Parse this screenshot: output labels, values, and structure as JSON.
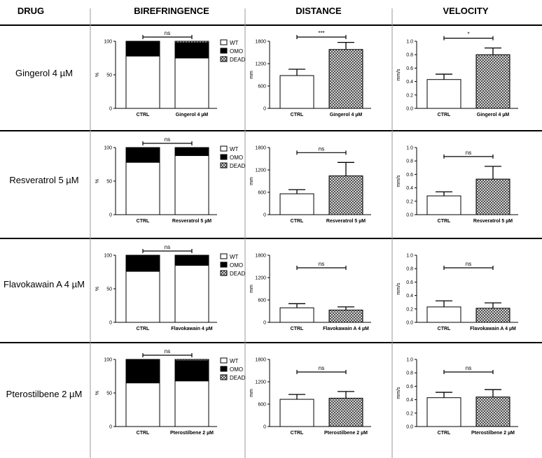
{
  "headers": {
    "drug": "DRUG",
    "birefringence": "BIREFRINGENCE",
    "distance": "DISTANCE",
    "velocity": "VELOCITY"
  },
  "legend": [
    "WT",
    "OMO",
    "DEAD"
  ],
  "rows": [
    {
      "drug": "Gingerol 4 µM",
      "bire": {
        "type": "bar",
        "stacked": true,
        "categories": [
          "CTRL",
          "Gingerol 4 µM"
        ],
        "ylabel": "%",
        "ylim": [
          0,
          100
        ],
        "ticks": [
          "0",
          "50",
          "100"
        ],
        "series": [
          {
            "name": "WT",
            "values": [
              78,
              75
            ]
          },
          {
            "name": "OMO",
            "values": [
              22,
              23
            ]
          },
          {
            "name": "DEAD",
            "values": [
              0,
              2
            ]
          }
        ],
        "sig": "ns"
      },
      "dist": {
        "type": "bar",
        "categories": [
          "CTRL",
          "Gingerol 4 µM"
        ],
        "ylabel": "mm",
        "ylim": [
          0,
          1800
        ],
        "ticks": [
          "0",
          "600",
          "1200",
          "1800"
        ],
        "values": [
          880,
          1580
        ],
        "errors": [
          170,
          190
        ],
        "sig": "***"
      },
      "vel": {
        "type": "bar",
        "categories": [
          "CTRL",
          "Gingerol 4 µM"
        ],
        "ylabel": "mm/s",
        "ylim": [
          0,
          1.0
        ],
        "ticks": [
          "0.0",
          "0.2",
          "0.4",
          "0.6",
          "0.8",
          "1.0"
        ],
        "values": [
          0.43,
          0.8
        ],
        "errors": [
          0.08,
          0.1
        ],
        "sig": "*"
      }
    },
    {
      "drug": "Resveratrol 5 µM",
      "bire": {
        "type": "bar",
        "stacked": true,
        "categories": [
          "CTRL",
          "Resveratrol 5 µM"
        ],
        "ylabel": "%",
        "ylim": [
          0,
          100
        ],
        "ticks": [
          "0",
          "50",
          "100"
        ],
        "series": [
          {
            "name": "WT",
            "values": [
              78,
              88
            ]
          },
          {
            "name": "OMO",
            "values": [
              22,
              12
            ]
          },
          {
            "name": "DEAD",
            "values": [
              0,
              0
            ]
          }
        ],
        "sig": "ns"
      },
      "dist": {
        "type": "bar",
        "categories": [
          "CTRL",
          "Resveratrol 5 µM"
        ],
        "ylabel": "mm",
        "ylim": [
          0,
          1800
        ],
        "ticks": [
          "0",
          "600",
          "1200",
          "1800"
        ],
        "values": [
          560,
          1040
        ],
        "errors": [
          110,
          360
        ],
        "sig": "ns"
      },
      "vel": {
        "type": "bar",
        "categories": [
          "CTRL",
          "Resveratrol 5 µM"
        ],
        "ylabel": "mm/s",
        "ylim": [
          0,
          1.0
        ],
        "ticks": [
          "0.0",
          "0.2",
          "0.4",
          "0.6",
          "0.8",
          "1.0"
        ],
        "values": [
          0.28,
          0.53
        ],
        "errors": [
          0.06,
          0.19
        ],
        "sig": "ns"
      }
    },
    {
      "drug": "Flavokawain A 4 µM",
      "bire": {
        "type": "bar",
        "stacked": true,
        "categories": [
          "CTRL",
          "Flavokawain 4 µM"
        ],
        "ylabel": "%",
        "ylim": [
          0,
          100
        ],
        "ticks": [
          "0",
          "50",
          "100"
        ],
        "series": [
          {
            "name": "WT",
            "values": [
              76,
              85
            ]
          },
          {
            "name": "OMO",
            "values": [
              24,
              15
            ]
          },
          {
            "name": "DEAD",
            "values": [
              0,
              0
            ]
          }
        ],
        "sig": "ns"
      },
      "dist": {
        "type": "bar",
        "categories": [
          "CTRL",
          "Flavokawain A 4 µM"
        ],
        "ylabel": "mm",
        "ylim": [
          0,
          1800
        ],
        "ticks": [
          "0",
          "600",
          "1200",
          "1800"
        ],
        "values": [
          390,
          330
        ],
        "errors": [
          110,
          85
        ],
        "sig": "ns"
      },
      "vel": {
        "type": "bar",
        "categories": [
          "CTRL",
          "Flavokawain A 4 µM"
        ],
        "ylabel": "mm/s",
        "ylim": [
          0,
          1.0
        ],
        "ticks": [
          "0.0",
          "0.2",
          "0.4",
          "0.6",
          "0.8",
          "1.0"
        ],
        "values": [
          0.23,
          0.21
        ],
        "errors": [
          0.09,
          0.08
        ],
        "sig": "ns"
      }
    },
    {
      "drug": "Pterostilbene 2 µM",
      "bire": {
        "type": "bar",
        "stacked": true,
        "categories": [
          "CTRL",
          "Pterostilbene 2 µM"
        ],
        "ylabel": "%",
        "ylim": [
          0,
          100
        ],
        "ticks": [
          "0",
          "50",
          "100"
        ],
        "series": [
          {
            "name": "WT",
            "values": [
              65,
              68
            ]
          },
          {
            "name": "OMO",
            "values": [
              35,
              30
            ]
          },
          {
            "name": "DEAD",
            "values": [
              0,
              2
            ]
          }
        ],
        "sig": "ns"
      },
      "dist": {
        "type": "bar",
        "categories": [
          "CTRL",
          "Pterostilbene 2 µM"
        ],
        "ylabel": "mm",
        "ylim": [
          0,
          1800
        ],
        "ticks": [
          "0",
          "600",
          "1200",
          "1800"
        ],
        "values": [
          730,
          760
        ],
        "errors": [
          130,
          180
        ],
        "sig": "ns"
      },
      "vel": {
        "type": "bar",
        "categories": [
          "CTRL",
          "Pterostilbene 2 µM"
        ],
        "ylabel": "mm/s",
        "ylim": [
          0,
          1.0
        ],
        "ticks": [
          "0.0",
          "0.2",
          "0.4",
          "0.6",
          "0.8",
          "1.0"
        ],
        "values": [
          0.43,
          0.44
        ],
        "errors": [
          0.08,
          0.11
        ],
        "sig": "ns"
      }
    }
  ],
  "colors": {
    "wt": "#ffffff",
    "omo": "#000000",
    "line": "#000000",
    "divider": "#999999"
  }
}
